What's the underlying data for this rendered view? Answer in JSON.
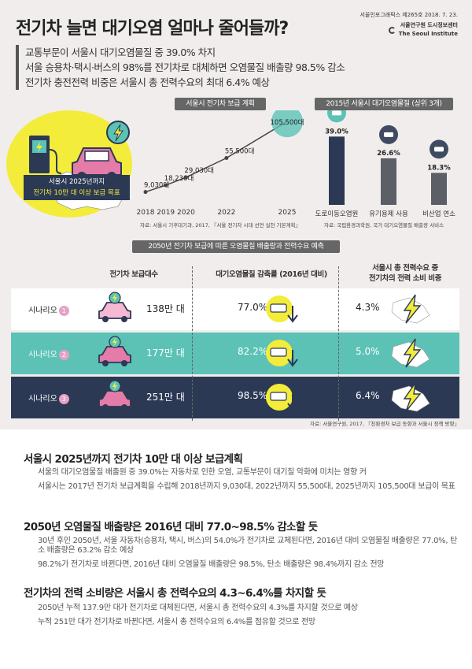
{
  "title": "전기차 늘면 대기오염 얼마나 줄어들까?",
  "publication": {
    "issue": "서울인포그래픽스 제265호  2018. 7. 23.",
    "org": "서울연구원 도시정보센터",
    "org_en": "The Seoul Institute"
  },
  "summary": [
    "교통부문이 서울시 대기오염물질 중 39.0% 차지",
    "서울 승용차·택시·버스의 98%를 전기차로 대체하면 오염물질 배출량 98.5% 감소",
    "전기차 충전전력 비중은 서울시 총 전력수요의 최대 6.4% 예상"
  ],
  "ev_plan": {
    "header": "서울시 전기차 보급 계획",
    "goal_line1": "서울시 2025년까지",
    "goal_line2": "전기차 10만 대 이상 보급 목표",
    "source": "자료: 서울시 기후대기과, 2017, 『서울 전기차 시대 선언 실천 기본계획』"
  },
  "pollutant": {
    "header": "2015년 서울시 대기오염물질 (상위 3개)",
    "source": "자료: 국립환경과학원, 국가 대기오염물질 배출량 서비스"
  },
  "chart_data": [
    {
      "type": "line",
      "title": "서울시 전기차 보급 계획",
      "x": [
        "2018",
        "2019",
        "2020",
        "2022",
        "2025"
      ],
      "x_numeric": [
        2018,
        2019,
        2020,
        2022,
        2025
      ],
      "values": [
        9030,
        18230,
        29030,
        55500,
        105500
      ],
      "labels": [
        "9,030대",
        "18,230대",
        "29,030대",
        "55,500대",
        "105,500대"
      ],
      "xlabel": "",
      "ylabel": "",
      "ylim": [
        0,
        110000
      ],
      "grid": false
    },
    {
      "type": "bar",
      "title": "2015년 서울시 대기오염물질 (상위 3개)",
      "categories": [
        "도로이동오염원",
        "유기용제 사용",
        "비산업 연소"
      ],
      "values": [
        39.0,
        26.6,
        18.3
      ],
      "labels": [
        "39.0%",
        "26.6%",
        "18.3%"
      ],
      "xlabel": "",
      "ylabel": "",
      "ylim": [
        0,
        45
      ],
      "grid": false
    }
  ],
  "scenario": {
    "header": "2050년 전기차 보급에 따른 오염물질 배출량과 전력수요 예측",
    "col1": "전기차 보급대수",
    "col2": "대기오염물질 감축률 (2016년 대비)",
    "col3_line1": "서울시 총 전력수요 중",
    "col3_line2": "전기차의 전력 소비 비중",
    "rows": [
      {
        "name": "시나리오",
        "num": "1",
        "cars": "138만 대",
        "reduction": "77.0%",
        "power": "4.3%"
      },
      {
        "name": "시나리오",
        "num": "2",
        "cars": "177만 대",
        "reduction": "82.2%",
        "power": "5.0%"
      },
      {
        "name": "시나리오",
        "num": "3",
        "cars": "251만 대",
        "reduction": "98.5%",
        "power": "6.4%"
      }
    ],
    "row_colors": [
      "#ffffff",
      "#5cc2b6",
      "#2b3954"
    ],
    "source": "자료: 서울연구원, 2017, 『친환경차 보급 동향과 서울시 정책 방향』"
  },
  "sections": [
    {
      "title": "서울시 2025년까지 전기차 10만 대 이상 보급계획",
      "paras": [
        "서울의 대기오염물질 배출원 중 39.0%는 자동차로 인한 오염, 교통부문이 대기질 악화에 미치는 영향 커",
        "서울시는 2017년 전기차 보급계획을 수립해 2018년까지 9,030대, 2022년까지 55,500대, 2025년까지 105,500대 보급이 목표"
      ]
    },
    {
      "title": "2050년 오염물질 배출량은 2016년 대비 77.0~98.5% 감소할 듯",
      "paras": [
        "30년 후인 2050년, 서울 자동차(승용차, 택시, 버스)의 54.0%가 전기차로 교체된다면, 2016년 대비 오염물질 배출량은 77.0%, 탄소 배출량은 63.2% 감소 예상",
        "98.2%가 전기차로 바뀐다면, 2016년 대비 오염물질 배출량은 98.5%, 탄소 배출량은 98.4%까지 감소 전망"
      ]
    },
    {
      "title": "전기차의 전력 소비량은 서울시 총 전력수요의 4.3~6.4%를 차지할 듯",
      "paras": [
        "2050년 누적 137.9만 대가 전기차로 대체된다면, 서울시 총 전력수요의 4.3%를 차지할 것으로 예상",
        "누적 251만 대가 전기차로 바뀐다면, 서울시 총 전력수요의 6.4%를 점유할 것으로 전망"
      ]
    }
  ],
  "colors": {
    "navy": "#2b3954",
    "teal": "#5cc2b6",
    "yellow": "#f3ec3a",
    "pink": "#e4a3c6",
    "gray": "#666666"
  },
  "icons": [
    "charging-station-icon",
    "electric-car-icon",
    "car-exhaust-icon",
    "factory-icon",
    "house-icon",
    "lightning-icon",
    "down-arrow-icon"
  ]
}
